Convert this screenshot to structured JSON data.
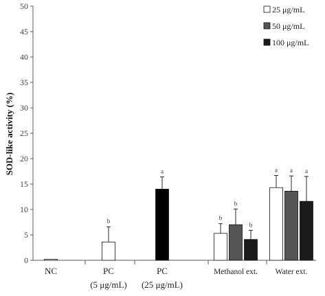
{
  "chart_data": {
    "type": "bar",
    "ylabel": "SOD-like activity (%)",
    "ylim": [
      0,
      50
    ],
    "yticks": [
      "0",
      "5",
      "10",
      "15",
      "20",
      "25",
      "30",
      "35",
      "40",
      "45",
      "50"
    ],
    "categories": [
      {
        "line1": "NC",
        "line2": ""
      },
      {
        "line1": "PC",
        "line2": "(5 μg/mL)"
      },
      {
        "line1": "PC",
        "line2": "(25 μg/mL)"
      },
      {
        "line1": "Methanol ext.",
        "line2": ""
      },
      {
        "line1": "Water ext.",
        "line2": ""
      }
    ],
    "legend_position": "top-right",
    "legend": [
      {
        "label": "25 μg/mL",
        "color": "#ffffff"
      },
      {
        "label": "50 μg/mL",
        "color": "#555555"
      },
      {
        "label": "100 μg/mL",
        "color": "#1a1a1a"
      }
    ],
    "bars": [
      {
        "category": 0,
        "value": 0.2,
        "error": 0,
        "letter": "",
        "color": "#ffffff"
      },
      {
        "category": 1,
        "value": 3.6,
        "error": 3.0,
        "letter": "b",
        "color": "#ffffff"
      },
      {
        "category": 2,
        "value": 14.0,
        "error": 2.4,
        "letter": "a",
        "color": "#000000"
      },
      {
        "category": 3,
        "value": 5.3,
        "error": 1.9,
        "letter": "b",
        "color": "#ffffff"
      },
      {
        "category": 3,
        "value": 7.0,
        "error": 3.1,
        "letter": "b",
        "color": "#555555"
      },
      {
        "category": 3,
        "value": 4.1,
        "error": 1.8,
        "letter": "b",
        "color": "#1a1a1a"
      },
      {
        "category": 4,
        "value": 14.3,
        "error": 2.4,
        "letter": "a",
        "color": "#ffffff"
      },
      {
        "category": 4,
        "value": 13.6,
        "error": 3.0,
        "letter": "a",
        "color": "#555555"
      },
      {
        "category": 4,
        "value": 11.6,
        "error": 4.9,
        "letter": "a",
        "color": "#1a1a1a"
      }
    ]
  }
}
